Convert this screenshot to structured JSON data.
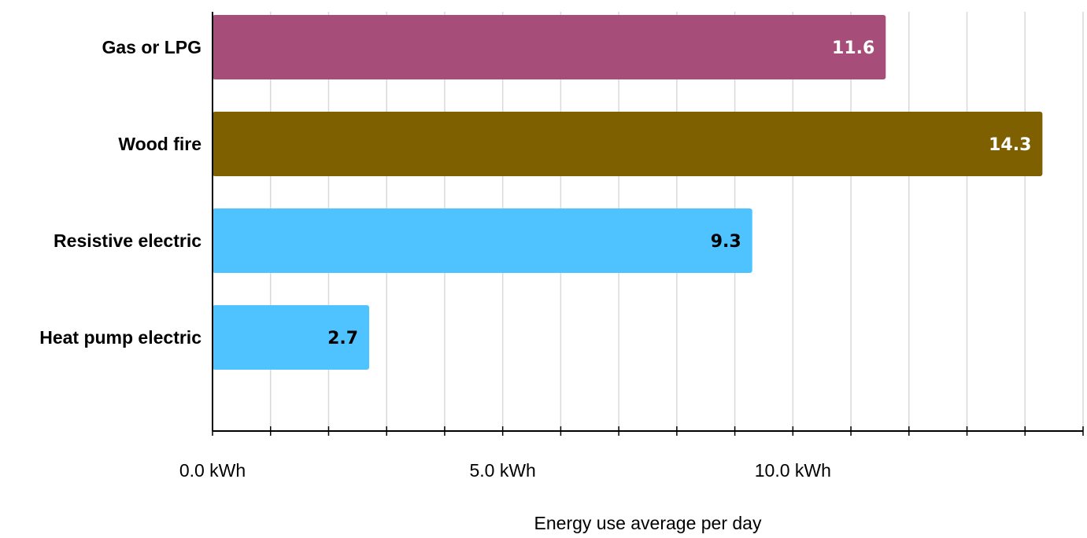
{
  "chart_data": {
    "type": "bar",
    "orientation": "horizontal",
    "categories": [
      "Gas or LPG",
      "Wood fire",
      "Resistive electric",
      "Heat pump electric"
    ],
    "values": [
      11.6,
      14.3,
      9.3,
      2.7
    ],
    "data_labels": [
      "11.6",
      "14.3",
      "9.3",
      "2.7"
    ],
    "bar_colors": [
      "#a64d79",
      "#7f6000",
      "#4fc3ff",
      "#4fc3ff"
    ],
    "data_label_colors": [
      "#ffffff",
      "#ffffff",
      "#000000",
      "#000000"
    ],
    "xlabel": "Energy use average per day",
    "ylabel": "",
    "xlim": [
      0,
      15
    ],
    "minor_tick_step": 1,
    "x_ticks": [
      {
        "value": 0,
        "label": "0.0 kWh"
      },
      {
        "value": 5,
        "label": "5.0 kWh"
      },
      {
        "value": 10,
        "label": "10.0 kWh"
      }
    ],
    "grid": true,
    "legend": false
  }
}
